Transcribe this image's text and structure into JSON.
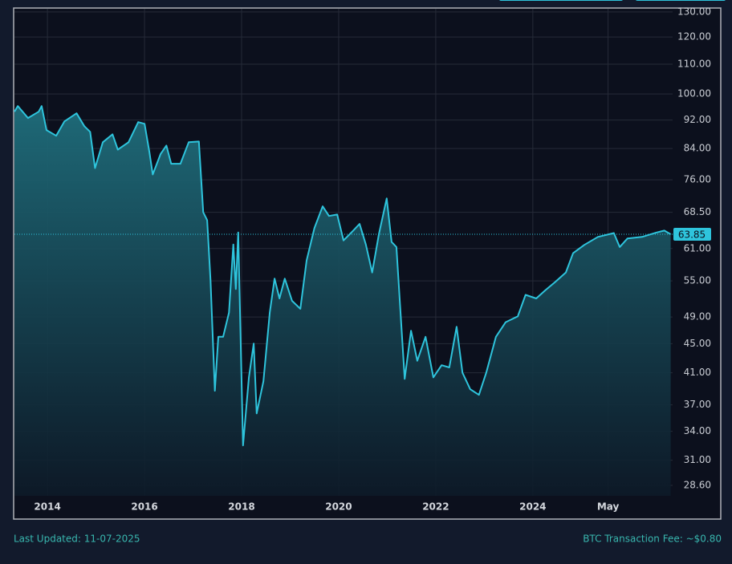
{
  "chart_data": {
    "type": "line",
    "yscale": "log",
    "grid": true,
    "x": [
      2013.32,
      2013.39,
      2013.6,
      2013.82,
      2013.88,
      2013.98,
      2014.18,
      2014.35,
      2014.6,
      2014.76,
      2014.88,
      2014.98,
      2015.14,
      2015.34,
      2015.45,
      2015.67,
      2015.87,
      2016.0,
      2016.1,
      2016.17,
      2016.33,
      2016.45,
      2016.55,
      2016.74,
      2016.91,
      2017.12,
      2017.21,
      2017.29,
      2017.36,
      2017.45,
      2017.52,
      2017.62,
      2017.74,
      2017.83,
      2017.88,
      2017.93,
      2018.03,
      2018.15,
      2018.25,
      2018.31,
      2018.45,
      2018.58,
      2018.68,
      2018.78,
      2018.89,
      2019.04,
      2019.21,
      2019.34,
      2019.5,
      2019.67,
      2019.8,
      2019.97,
      2020.1,
      2020.3,
      2020.43,
      2020.56,
      2020.69,
      2020.83,
      2020.99,
      2021.09,
      2021.19,
      2021.36,
      2021.49,
      2021.62,
      2021.79,
      2021.95,
      2022.12,
      2022.28,
      2022.43,
      2022.55,
      2022.71,
      2022.89,
      2023.04,
      2023.24,
      2023.44,
      2023.69,
      2023.85,
      2024.07,
      2024.26,
      2024.46,
      2024.68,
      2024.83,
      2025.06,
      2025.34,
      2025.67,
      2025.79,
      2025.95,
      2026.25,
      2026.55,
      2026.71,
      2026.84
    ],
    "series": [
      {
        "color": "#2ec4dc",
        "values": [
          94.5,
          96.2,
          92.6,
          94.5,
          96.2,
          89.1,
          87.5,
          91.6,
          94.0,
          90.2,
          88.6,
          78.9,
          85.7,
          87.9,
          83.7,
          85.7,
          91.4,
          90.9,
          83.1,
          77.3,
          82.5,
          84.8,
          80.0,
          80.0,
          85.7,
          85.9,
          68.5,
          66.8,
          55.1,
          38.7,
          46.0,
          46.0,
          49.7,
          61.8,
          53.6,
          64.2,
          32.5,
          40.4,
          45.0,
          36.0,
          39.9,
          49.7,
          55.4,
          52.0,
          55.4,
          51.6,
          50.3,
          58.7,
          65.1,
          69.8,
          67.7,
          68.0,
          62.6,
          64.6,
          66.0,
          61.8,
          56.5,
          63.9,
          71.6,
          62.3,
          61.3,
          40.2,
          46.9,
          42.6,
          46.0,
          40.4,
          42.0,
          41.7,
          47.5,
          41.0,
          38.9,
          38.2,
          41.0,
          46.0,
          48.2,
          49.1,
          52.6,
          52.0,
          53.4,
          54.8,
          56.5,
          60.1,
          61.7,
          63.3,
          64.1,
          61.3,
          63.0,
          63.3,
          64.2,
          64.6,
          63.85
        ]
      }
    ],
    "xlim": [
      2013.32,
      2026.88
    ],
    "xticks": [
      2014,
      2016,
      2018,
      2020,
      2022,
      2024,
      {
        "value": 2025.55,
        "label": "May"
      }
    ],
    "ylim": [
      27.66,
      131.3
    ],
    "yticks": [
      {
        "value": 28.6,
        "label": "28.60"
      },
      {
        "value": 31,
        "label": "31.00"
      },
      {
        "value": 34,
        "label": "34.00"
      },
      {
        "value": 37,
        "label": "37.00"
      },
      {
        "value": 41,
        "label": "41.00"
      },
      {
        "value": 45,
        "label": "45.00"
      },
      {
        "value": 49,
        "label": "49.00"
      },
      {
        "value": 55,
        "label": "55.00"
      },
      {
        "value": 61,
        "label": "61.00"
      },
      {
        "value": 68.5,
        "label": "68.50"
      },
      {
        "value": 76,
        "label": "76.00"
      },
      {
        "value": 84,
        "label": "84.00"
      },
      {
        "value": 92,
        "label": "92.00"
      },
      {
        "value": 100,
        "label": "100.00"
      },
      {
        "value": 110,
        "label": "110.00"
      },
      {
        "value": 120,
        "label": "120.00"
      },
      {
        "value": 130,
        "label": "130.00"
      }
    ],
    "footer_left": "Last Updated: 11-07-2025",
    "footer_right": "BTC Transaction Fee: ~$0.80"
  }
}
